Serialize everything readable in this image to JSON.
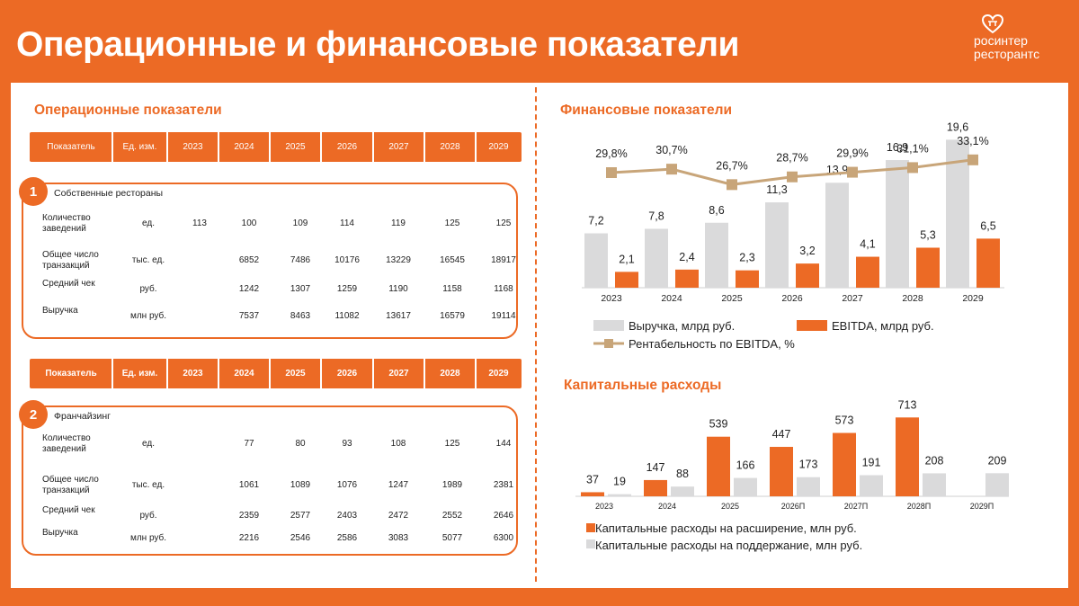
{
  "title": "Операционные и финансовые показатели",
  "logo": {
    "line1": "росинтер",
    "line2": "ресторантс"
  },
  "colors": {
    "accent": "#ec6a25",
    "gray": "#dadadb",
    "line": "#c8a579"
  },
  "operational": {
    "title": "Операционные показатели",
    "header": [
      "Показатель",
      "Ед. изм.",
      "2023",
      "2024",
      "2025",
      "2026",
      "2027",
      "2028",
      "2029"
    ],
    "groups": [
      {
        "number": "1",
        "name": "Собственные рестораны",
        "rows": [
          {
            "label": "Количество заведений",
            "unit": "ед.",
            "values": [
              "113",
              "100",
              "109",
              "114",
              "119",
              "125",
              "125"
            ]
          },
          {
            "label": "Общее число транзакций",
            "unit": "тыс. ед.",
            "values": [
              "",
              "6852",
              "7486",
              "10176",
              "13229",
              "16545",
              "18917"
            ]
          },
          {
            "label": "Средний чек",
            "unit": "руб.",
            "values": [
              "",
              "1242",
              "1307",
              "1259",
              "1190",
              "1158",
              "1168"
            ]
          },
          {
            "label": "Выручка",
            "unit": "млн руб.",
            "values": [
              "",
              "7537",
              "8463",
              "11082",
              "13617",
              "16579",
              "19114"
            ]
          }
        ]
      },
      {
        "number": "2",
        "name": "Франчайзинг",
        "rows": [
          {
            "label": "Количество заведений",
            "unit": "ед.",
            "values": [
              "",
              "77",
              "80",
              "93",
              "108",
              "125",
              "144"
            ]
          },
          {
            "label": "Общее число транзакций",
            "unit": "тыс. ед.",
            "values": [
              "",
              "1061",
              "1089",
              "1076",
              "1247",
              "1989",
              "2381"
            ]
          },
          {
            "label": "Средний чек",
            "unit": "руб.",
            "values": [
              "",
              "2359",
              "2577",
              "2403",
              "2472",
              "2552",
              "2646"
            ]
          },
          {
            "label": "Выручка",
            "unit": "млн руб.",
            "values": [
              "",
              "2216",
              "2546",
              "2586",
              "3083",
              "5077",
              "6300"
            ]
          }
        ]
      }
    ]
  },
  "chart_data": [
    {
      "type": "bar",
      "title": "Финансовые показатели",
      "categories": [
        "2023",
        "2024",
        "2025",
        "2026",
        "2027",
        "2028",
        "2029"
      ],
      "series": [
        {
          "name": "Выручка, млрд руб.",
          "kind": "bar",
          "color": "#dadadb",
          "values": [
            7.2,
            7.8,
            8.6,
            11.3,
            13.9,
            16.9,
            19.6
          ],
          "labels": [
            "7,2",
            "7,8",
            "8,6",
            "11,3",
            "13,9",
            "16,9",
            "19,6"
          ]
        },
        {
          "name": "EBITDA, млрд руб.",
          "kind": "bar",
          "color": "#ec6a25",
          "values": [
            2.1,
            2.4,
            2.3,
            3.2,
            4.1,
            5.3,
            6.5
          ],
          "labels": [
            "2,1",
            "2,4",
            "2,3",
            "3,2",
            "4,1",
            "5,3",
            "6,5"
          ]
        },
        {
          "name": "Рентабельность по EBITDA, %",
          "kind": "line",
          "color": "#c8a579",
          "values": [
            29.8,
            30.7,
            26.7,
            28.7,
            29.9,
            31.1,
            33.1
          ],
          "labels": [
            "29,8%",
            "30,7%",
            "26,7%",
            "28,7%",
            "29,9%",
            "31,1%",
            "33,1%"
          ]
        }
      ],
      "legend_position": "bottom"
    },
    {
      "type": "bar",
      "title": "Капитальные расходы",
      "categories": [
        "2023",
        "2024",
        "2025",
        "2026П",
        "2027П",
        "2028П",
        "2029П"
      ],
      "series": [
        {
          "name": "Капитальные расходы на расширение, млн руб.",
          "color": "#ec6a25",
          "values": [
            37,
            147,
            539,
            447,
            573,
            713,
            null
          ],
          "labels": [
            "37",
            "147",
            "539",
            "447",
            "573",
            "713",
            ""
          ]
        },
        {
          "name": "Капитальные расходы на поддержание, млн руб.",
          "color": "#dadadb",
          "values": [
            19,
            88,
            166,
            173,
            191,
            208,
            209
          ],
          "labels": [
            "19",
            "88",
            "166",
            "173",
            "191",
            "208",
            "209"
          ]
        }
      ],
      "legend_position": "bottom"
    }
  ]
}
